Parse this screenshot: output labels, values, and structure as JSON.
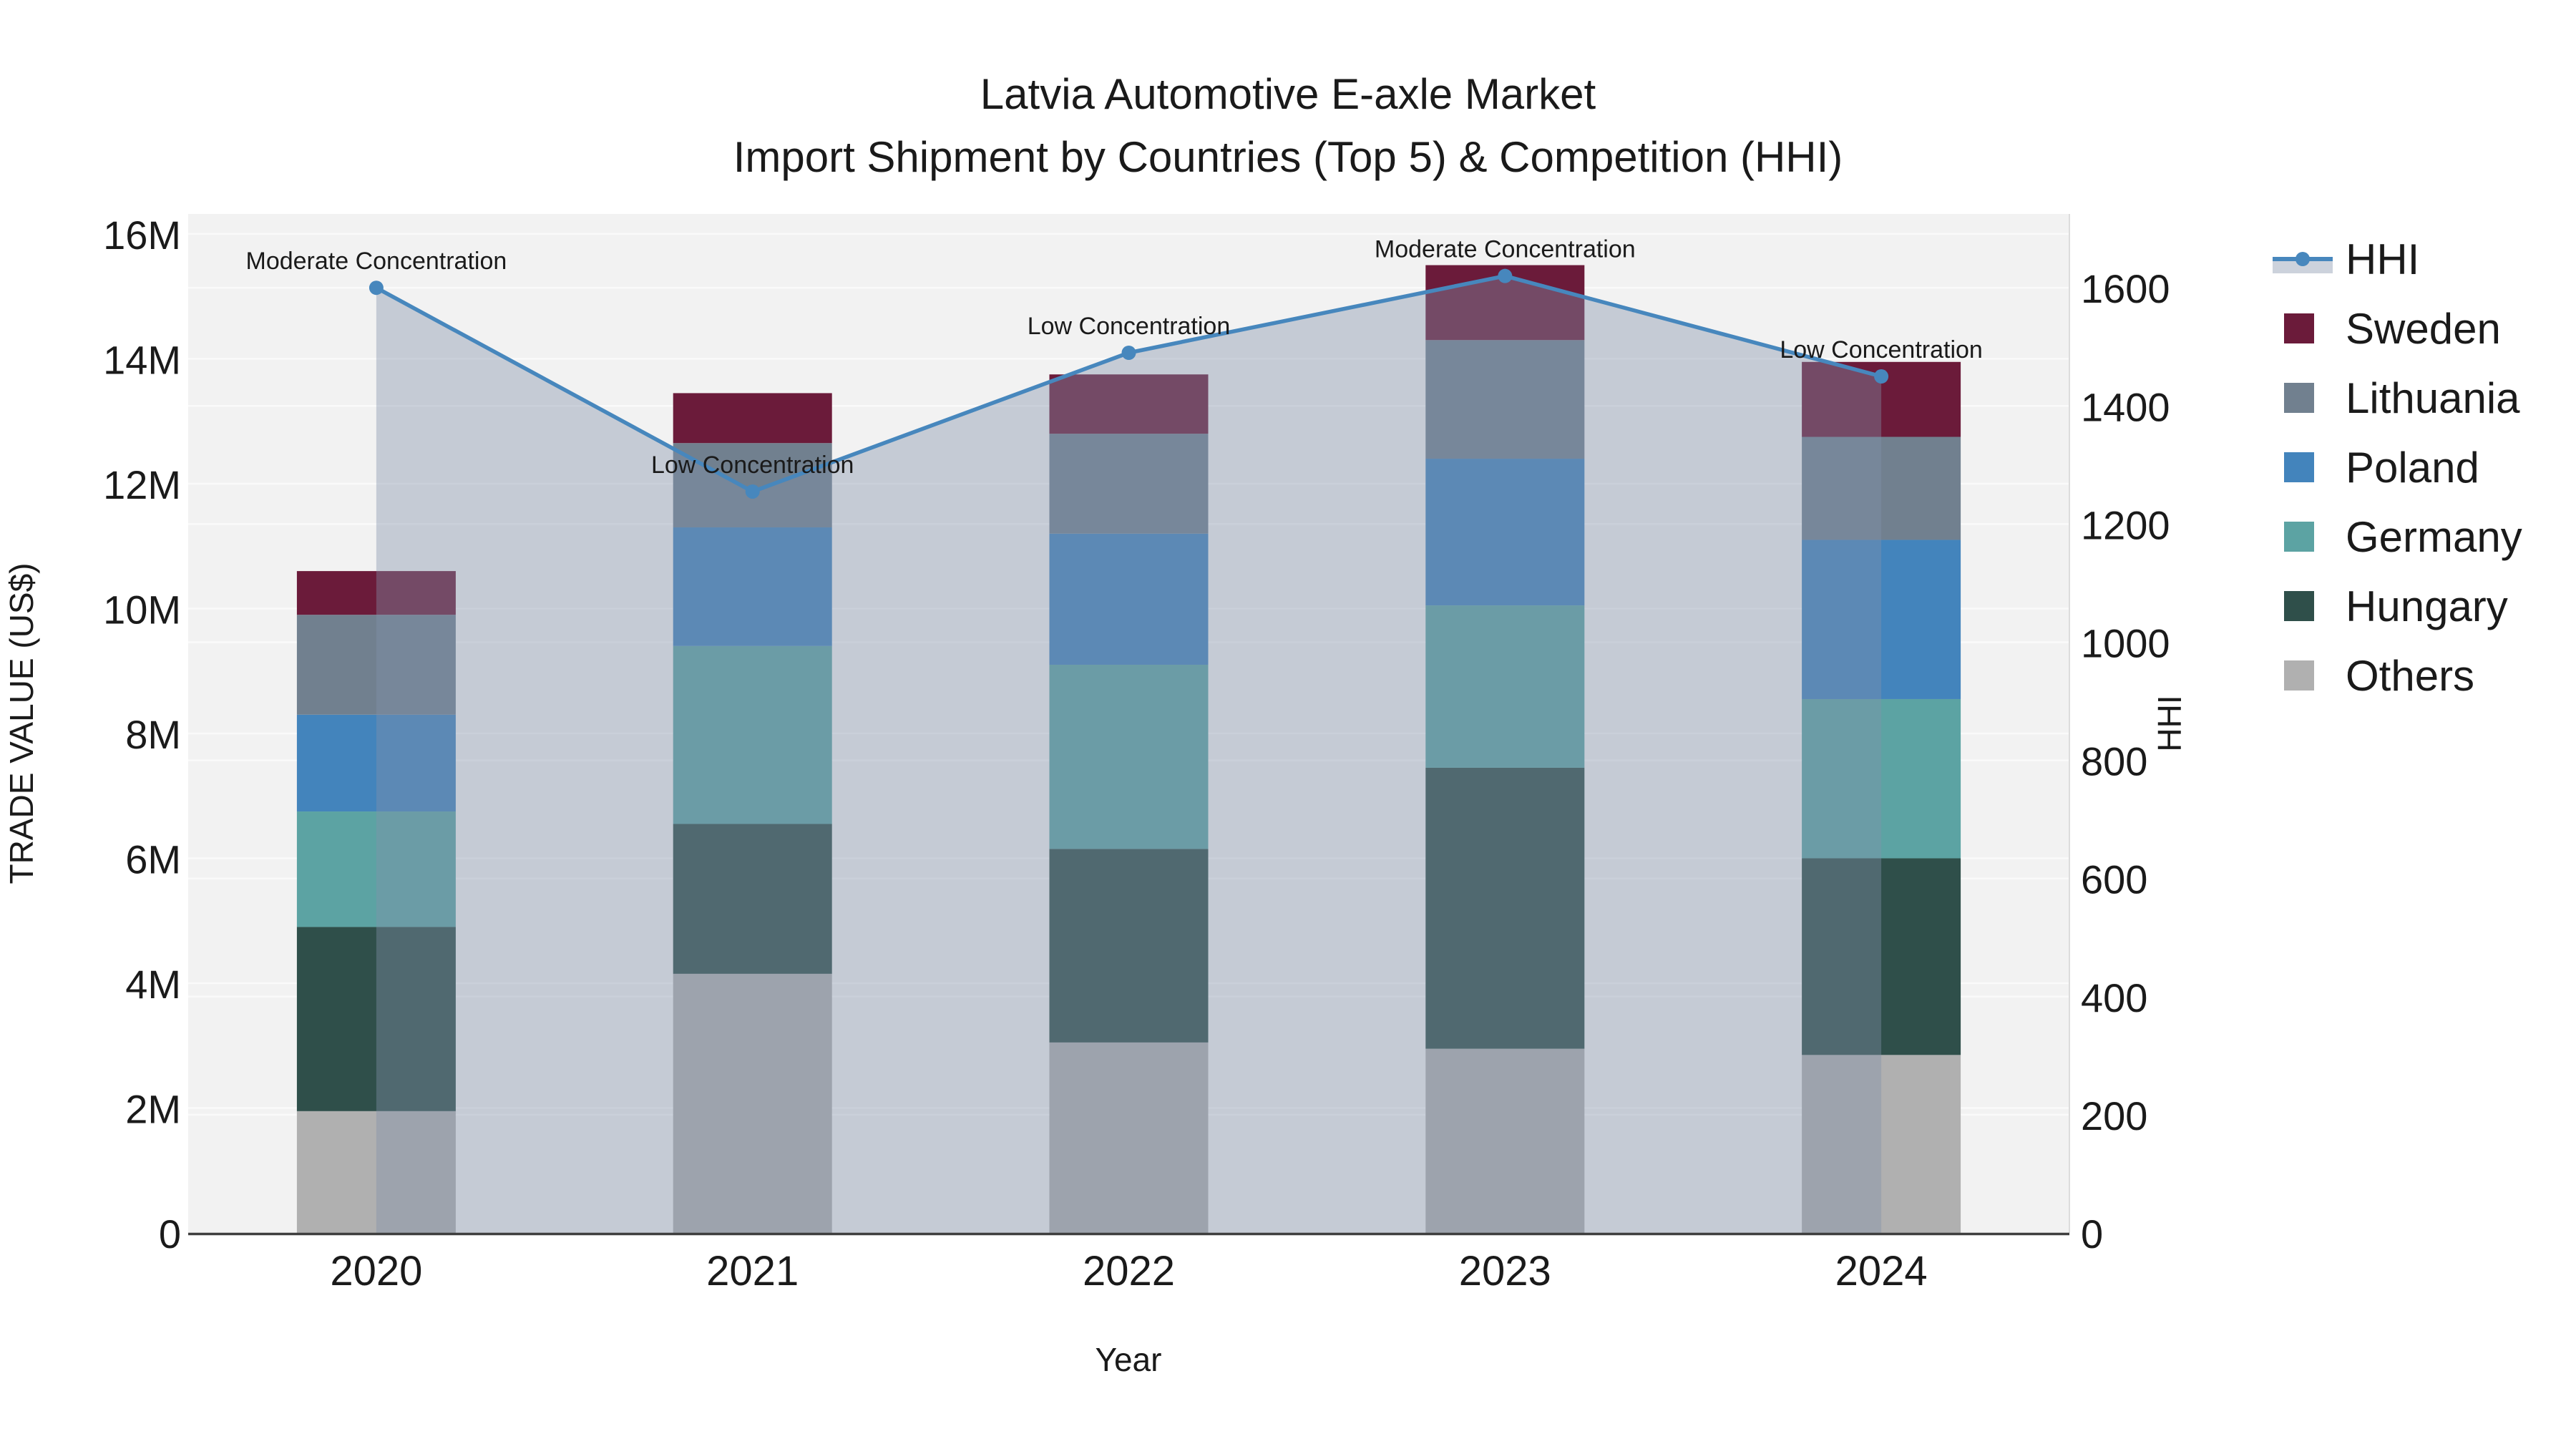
{
  "title": {
    "line1": "Latvia Automotive E-axle Market",
    "line2": "Import Shipment by Countries (Top 5) & Competition (HHI)"
  },
  "chart_data": {
    "type": "bar+line",
    "subtype": "stacked bars (trade value) with HHI line on secondary axis and translucent area fill under line",
    "categories": [
      "2020",
      "2021",
      "2022",
      "2023",
      "2024"
    ],
    "bar_series": [
      {
        "name": "Others",
        "color": "#b0b0b0",
        "values_musd": [
          1.95,
          4.15,
          3.05,
          2.95,
          2.85
        ]
      },
      {
        "name": "Hungary",
        "color": "#2f4f4a",
        "values_musd": [
          2.95,
          2.4,
          3.1,
          4.5,
          3.15
        ]
      },
      {
        "name": "Germany",
        "color": "#5ca3a3",
        "values_musd": [
          1.85,
          2.85,
          2.95,
          2.6,
          2.55
        ]
      },
      {
        "name": "Poland",
        "color": "#4384bc",
        "values_musd": [
          1.55,
          1.9,
          2.1,
          2.35,
          2.55
        ]
      },
      {
        "name": "Lithuania",
        "color": "#71808f",
        "values_musd": [
          1.6,
          1.35,
          1.6,
          1.9,
          1.65
        ]
      },
      {
        "name": "Sweden",
        "color": "#6b1b3a",
        "values_musd": [
          0.7,
          0.8,
          0.95,
          1.2,
          1.2
        ]
      }
    ],
    "bar_totals_musd": [
      10.6,
      13.45,
      13.75,
      15.5,
      13.95
    ],
    "line_series": {
      "name": "HHI",
      "color": "#4787bd",
      "fill_color": "rgba(130,146,170,0.40)",
      "values": [
        1600,
        1255,
        1490,
        1620,
        1450
      ]
    },
    "annotations": [
      "Moderate Concentration",
      "Low Concentration",
      "Low Concentration",
      "Moderate Concentration",
      "Low Concentration"
    ],
    "left_axis": {
      "title": "TRADE VALUE (US$)",
      "tick_labels": [
        "0",
        "2M",
        "4M",
        "6M",
        "8M",
        "10M",
        "12M",
        "14M",
        "16M"
      ],
      "tick_values_musd": [
        0,
        2,
        4,
        6,
        8,
        10,
        12,
        14,
        16
      ],
      "max_musd": 16.32
    },
    "right_axis": {
      "title": "HHI",
      "tick_labels": [
        "0",
        "200",
        "400",
        "600",
        "800",
        "1000",
        "1200",
        "1400",
        "1600"
      ],
      "tick_values": [
        0,
        200,
        400,
        600,
        800,
        1000,
        1200,
        1400,
        1600
      ],
      "max": 1725
    },
    "x_axis": {
      "title": "Year"
    },
    "legend_order": [
      "HHI",
      "Sweden",
      "Lithuania",
      "Poland",
      "Germany",
      "Hungary",
      "Others"
    ],
    "colors": {
      "plot_background": "#f2f2f2",
      "gridline": "#fafafa",
      "axis_line": "#3f3f3f",
      "right_spine": "#dcdcdc",
      "legend_fill_band": "#ccd2dc"
    }
  }
}
